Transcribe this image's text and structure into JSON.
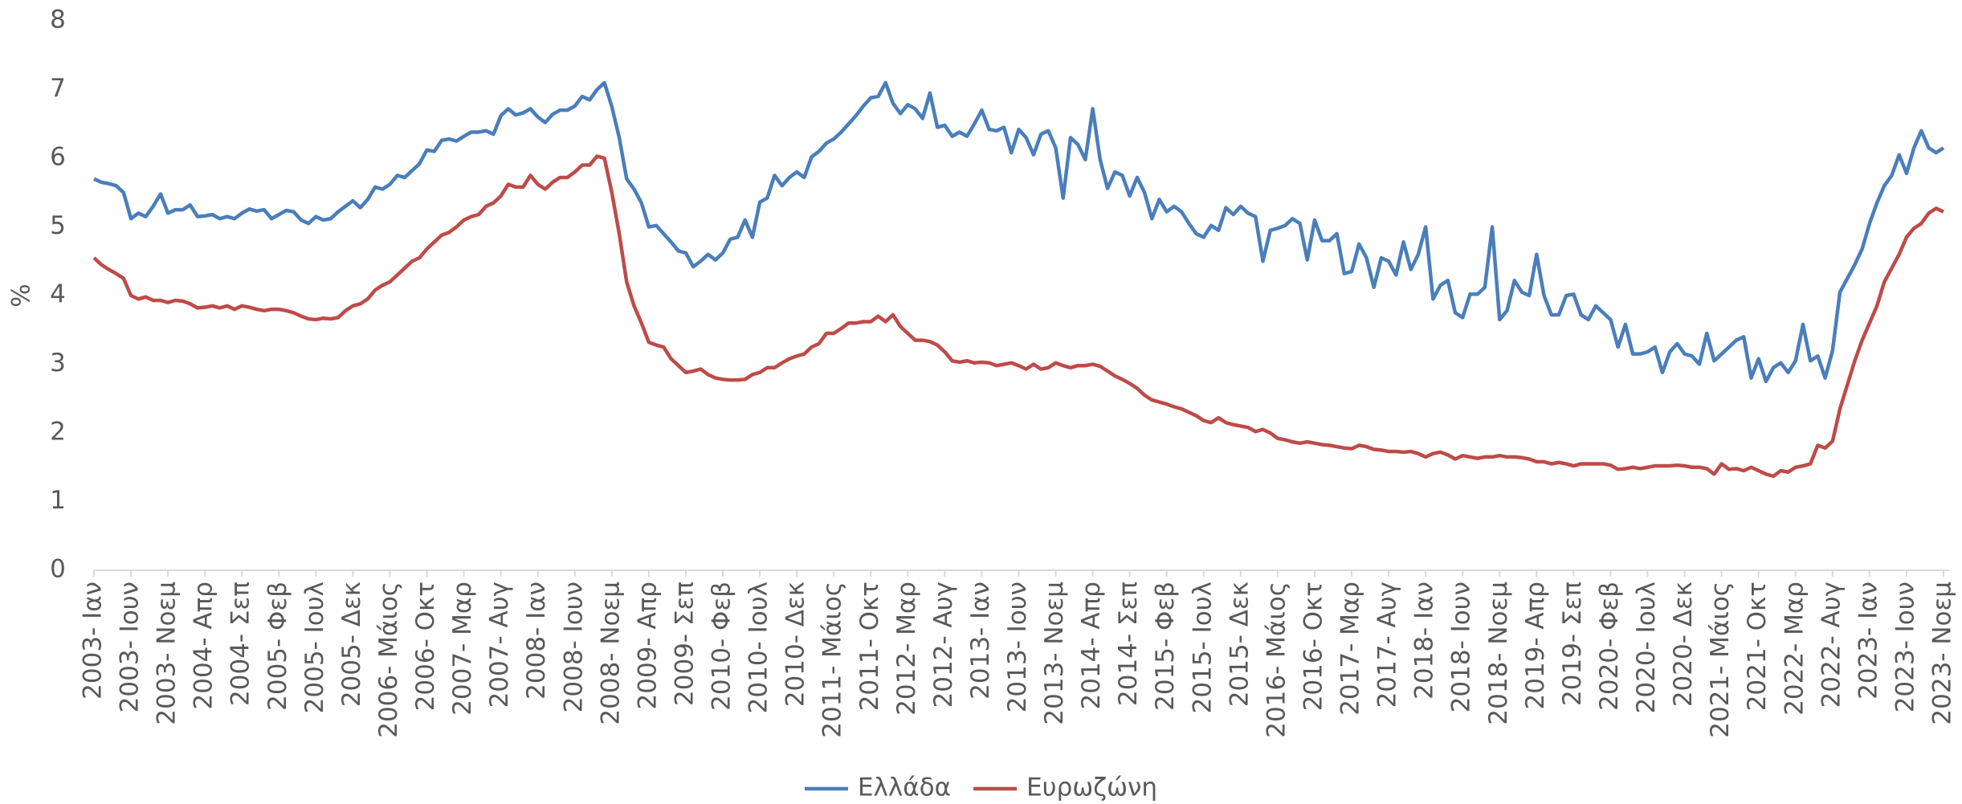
{
  "chart_data": {
    "type": "line",
    "y_label": "%",
    "categories": [
      "2003- Ιαν",
      null,
      null,
      null,
      null,
      "2003- Ιουν",
      null,
      null,
      null,
      null,
      "2003- Νοεμ",
      null,
      null,
      null,
      null,
      "2004- Απρ",
      null,
      null,
      null,
      null,
      "2004- Σεπ",
      null,
      null,
      null,
      null,
      "2005- Φεβ",
      null,
      null,
      null,
      null,
      "2005- Ιουλ",
      null,
      null,
      null,
      null,
      "2005- Δεκ",
      null,
      null,
      null,
      null,
      "2006- Μάιος",
      null,
      null,
      null,
      null,
      "2006- Οκτ",
      null,
      null,
      null,
      null,
      "2007- Μαρ",
      null,
      null,
      null,
      null,
      "2007- Αυγ",
      null,
      null,
      null,
      null,
      "2008- Ιαν",
      null,
      null,
      null,
      null,
      "2008- Ιουν",
      null,
      null,
      null,
      null,
      "2008- Νοεμ",
      null,
      null,
      null,
      null,
      "2009- Απρ",
      null,
      null,
      null,
      null,
      "2009- Σεπ",
      null,
      null,
      null,
      null,
      "2010- Φεβ",
      null,
      null,
      null,
      null,
      "2010- Ιουλ",
      null,
      null,
      null,
      null,
      "2010- Δεκ",
      null,
      null,
      null,
      null,
      "2011- Μάιος",
      null,
      null,
      null,
      null,
      "2011- Οκτ",
      null,
      null,
      null,
      null,
      "2012- Μαρ",
      null,
      null,
      null,
      null,
      "2012- Αυγ",
      null,
      null,
      null,
      null,
      "2013- Ιαν",
      null,
      null,
      null,
      null,
      "2013- Ιουν",
      null,
      null,
      null,
      null,
      "2013- Νοεμ",
      null,
      null,
      null,
      null,
      "2014- Απρ",
      null,
      null,
      null,
      null,
      "2014- Σεπ",
      null,
      null,
      null,
      null,
      "2015- Φεβ",
      null,
      null,
      null,
      null,
      "2015- Ιουλ",
      null,
      null,
      null,
      null,
      "2015- Δεκ",
      null,
      null,
      null,
      null,
      "2016- Μάιος",
      null,
      null,
      null,
      null,
      "2016- Οκτ",
      null,
      null,
      null,
      null,
      "2017- Μαρ",
      null,
      null,
      null,
      null,
      "2017- Αυγ",
      null,
      null,
      null,
      null,
      "2018- Ιαν",
      null,
      null,
      null,
      null,
      "2018- Ιουν",
      null,
      null,
      null,
      null,
      "2018- Νοεμ",
      null,
      null,
      null,
      null,
      "2019- Απρ",
      null,
      null,
      null,
      null,
      "2019- Σεπ",
      null,
      null,
      null,
      null,
      "2020- Φεβ",
      null,
      null,
      null,
      null,
      "2020- Ιουλ",
      null,
      null,
      null,
      null,
      "2020- Δεκ",
      null,
      null,
      null,
      null,
      "2021- Μάιος",
      null,
      null,
      null,
      null,
      "2021- Οκτ",
      null,
      null,
      null,
      null,
      "2022- Μαρ",
      null,
      null,
      null,
      null,
      "2022- Αυγ",
      null,
      null,
      null,
      null,
      "2023- Ιαν",
      null,
      null,
      null,
      null,
      "2023- Ιουν",
      null,
      null,
      null,
      null,
      "2023- Νοεμ"
    ],
    "series": [
      {
        "name": "Ελλάδα",
        "color": "#4a7ebb",
        "values": [
          5.7,
          5.65,
          5.63,
          5.6,
          5.5,
          5.12,
          5.2,
          5.15,
          5.3,
          5.48,
          5.2,
          5.25,
          5.25,
          5.32,
          5.15,
          5.16,
          5.18,
          5.12,
          5.15,
          5.12,
          5.2,
          5.26,
          5.23,
          5.25,
          5.12,
          5.18,
          5.24,
          5.22,
          5.1,
          5.05,
          5.15,
          5.1,
          5.12,
          5.22,
          5.3,
          5.38,
          5.28,
          5.4,
          5.58,
          5.55,
          5.62,
          5.75,
          5.72,
          5.82,
          5.92,
          6.12,
          6.1,
          6.26,
          6.28,
          6.25,
          6.32,
          6.38,
          6.38,
          6.4,
          6.35,
          6.62,
          6.72,
          6.63,
          6.66,
          6.72,
          6.6,
          6.52,
          6.64,
          6.7,
          6.7,
          6.76,
          6.9,
          6.85,
          7.0,
          7.1,
          6.75,
          6.3,
          5.7,
          5.55,
          5.35,
          5.0,
          5.02,
          4.9,
          4.78,
          4.65,
          4.62,
          4.42,
          4.5,
          4.6,
          4.52,
          4.62,
          4.82,
          4.85,
          5.1,
          4.85,
          5.36,
          5.42,
          5.75,
          5.6,
          5.72,
          5.8,
          5.72,
          6.02,
          6.1,
          6.22,
          6.28,
          6.38,
          6.5,
          6.62,
          6.76,
          6.88,
          6.9,
          7.1,
          6.8,
          6.65,
          6.78,
          6.72,
          6.58,
          6.95,
          6.45,
          6.48,
          6.32,
          6.38,
          6.32,
          6.5,
          6.7,
          6.42,
          6.4,
          6.45,
          6.08,
          6.42,
          6.3,
          6.05,
          6.35,
          6.4,
          6.15,
          5.42,
          6.3,
          6.2,
          5.98,
          6.72,
          5.98,
          5.56,
          5.8,
          5.75,
          5.45,
          5.72,
          5.5,
          5.12,
          5.4,
          5.22,
          5.3,
          5.22,
          5.05,
          4.9,
          4.85,
          5.02,
          4.95,
          5.28,
          5.18,
          5.3,
          5.2,
          5.15,
          4.5,
          4.95,
          4.98,
          5.02,
          5.12,
          5.05,
          4.52,
          5.1,
          4.8,
          4.8,
          4.9,
          4.32,
          4.35,
          4.75,
          4.55,
          4.12,
          4.55,
          4.5,
          4.3,
          4.78,
          4.38,
          4.6,
          5.0,
          3.95,
          4.15,
          4.22,
          3.75,
          3.68,
          4.02,
          4.02,
          4.12,
          5.0,
          3.65,
          3.78,
          4.22,
          4.05,
          4.0,
          4.6,
          4.0,
          3.72,
          3.72,
          4.0,
          4.02,
          3.72,
          3.65,
          3.85,
          3.75,
          3.65,
          3.25,
          3.58,
          3.15,
          3.15,
          3.18,
          3.25,
          2.88,
          3.18,
          3.3,
          3.15,
          3.12,
          3.0,
          3.45,
          3.05,
          3.15,
          3.25,
          3.35,
          3.4,
          2.8,
          3.08,
          2.75,
          2.95,
          3.02,
          2.88,
          3.05,
          3.58,
          3.05,
          3.12,
          2.8,
          3.2,
          4.05,
          4.25,
          4.45,
          4.68,
          5.05,
          5.35,
          5.6,
          5.75,
          6.05,
          5.78,
          6.15,
          6.4,
          6.15,
          6.08,
          6.15
        ]
      },
      {
        "name": "Ευρωζώνη",
        "color": "#be4b48",
        "values": [
          4.55,
          4.45,
          4.38,
          4.32,
          4.25,
          4.0,
          3.95,
          3.98,
          3.93,
          3.93,
          3.9,
          3.93,
          3.92,
          3.88,
          3.82,
          3.83,
          3.85,
          3.82,
          3.85,
          3.8,
          3.85,
          3.83,
          3.8,
          3.78,
          3.8,
          3.8,
          3.78,
          3.75,
          3.7,
          3.66,
          3.65,
          3.67,
          3.66,
          3.68,
          3.78,
          3.85,
          3.88,
          3.95,
          4.08,
          4.15,
          4.2,
          4.3,
          4.4,
          4.5,
          4.55,
          4.68,
          4.78,
          4.88,
          4.92,
          5.0,
          5.1,
          5.15,
          5.18,
          5.3,
          5.35,
          5.45,
          5.62,
          5.58,
          5.58,
          5.75,
          5.62,
          5.55,
          5.65,
          5.72,
          5.72,
          5.8,
          5.9,
          5.9,
          6.03,
          6.0,
          5.5,
          4.9,
          4.2,
          3.85,
          3.6,
          3.32,
          3.28,
          3.25,
          3.08,
          2.98,
          2.88,
          2.9,
          2.93,
          2.85,
          2.8,
          2.78,
          2.77,
          2.77,
          2.78,
          2.85,
          2.88,
          2.95,
          2.95,
          3.02,
          3.08,
          3.12,
          3.15,
          3.25,
          3.3,
          3.45,
          3.45,
          3.52,
          3.6,
          3.6,
          3.62,
          3.62,
          3.7,
          3.62,
          3.72,
          3.55,
          3.45,
          3.35,
          3.35,
          3.33,
          3.28,
          3.18,
          3.05,
          3.03,
          3.05,
          3.02,
          3.03,
          3.02,
          2.98,
          3.0,
          3.02,
          2.98,
          2.93,
          3.0,
          2.93,
          2.95,
          3.02,
          2.98,
          2.95,
          2.98,
          2.98,
          3.0,
          2.97,
          2.9,
          2.83,
          2.78,
          2.72,
          2.65,
          2.55,
          2.48,
          2.45,
          2.42,
          2.38,
          2.35,
          2.3,
          2.25,
          2.18,
          2.15,
          2.22,
          2.15,
          2.12,
          2.1,
          2.08,
          2.02,
          2.05,
          2.0,
          1.92,
          1.9,
          1.87,
          1.85,
          1.87,
          1.85,
          1.83,
          1.82,
          1.8,
          1.78,
          1.77,
          1.82,
          1.8,
          1.76,
          1.75,
          1.73,
          1.73,
          1.72,
          1.73,
          1.7,
          1.65,
          1.7,
          1.72,
          1.68,
          1.62,
          1.67,
          1.65,
          1.63,
          1.65,
          1.65,
          1.67,
          1.65,
          1.65,
          1.64,
          1.62,
          1.58,
          1.58,
          1.55,
          1.57,
          1.55,
          1.52,
          1.55,
          1.55,
          1.55,
          1.55,
          1.53,
          1.47,
          1.48,
          1.5,
          1.48,
          1.5,
          1.52,
          1.52,
          1.52,
          1.53,
          1.52,
          1.5,
          1.5,
          1.48,
          1.4,
          1.55,
          1.47,
          1.48,
          1.45,
          1.5,
          1.45,
          1.4,
          1.37,
          1.45,
          1.43,
          1.5,
          1.52,
          1.55,
          1.82,
          1.78,
          1.88,
          2.35,
          2.7,
          3.05,
          3.35,
          3.6,
          3.85,
          4.2,
          4.4,
          4.6,
          4.85,
          4.98,
          5.05,
          5.2,
          5.27,
          5.22
        ]
      }
    ],
    "ylim": [
      0,
      8
    ],
    "yticks": [
      0,
      1,
      2,
      3,
      4,
      5,
      6,
      7,
      8
    ],
    "grid": false,
    "legend": "bottom"
  }
}
